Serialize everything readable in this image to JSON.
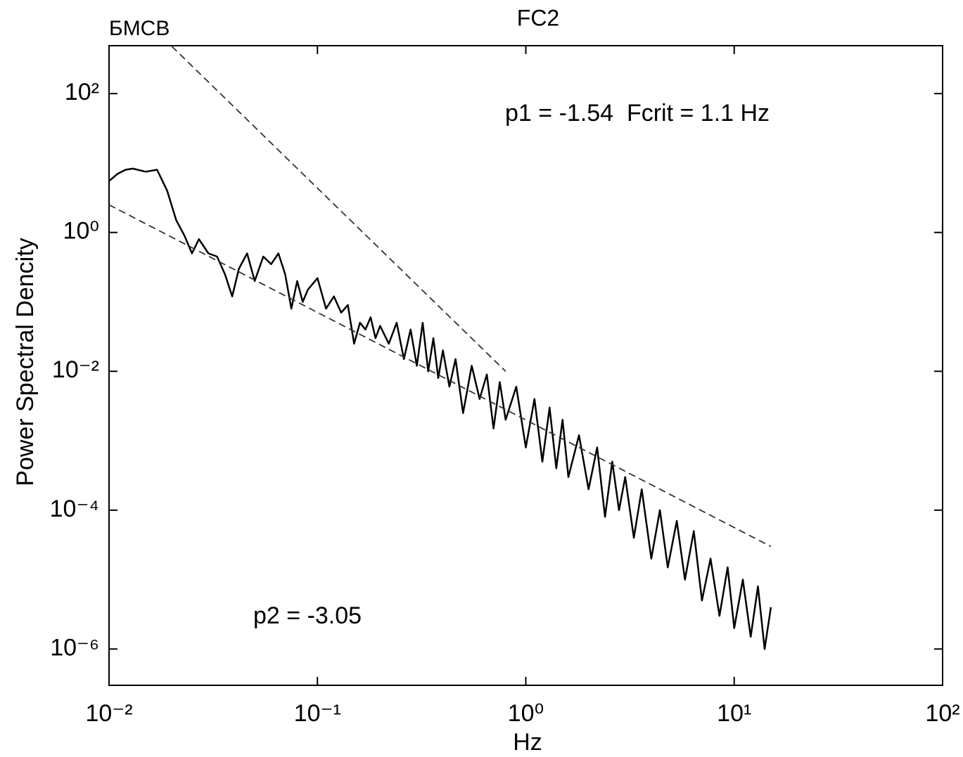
{
  "chart_data": {
    "type": "line",
    "title": "FC2",
    "x_label": "Hz",
    "y_label": "Power Spectral Dencity",
    "annotations": [
      "БМСВ",
      "p1 = -1.54  Fcrit = 1.1 Hz",
      "p2 = -3.05"
    ],
    "xscale": "log",
    "yscale": "log",
    "xlim": [
      0.01,
      100
    ],
    "ylim": [
      3e-07,
      490
    ],
    "xticks": [
      {
        "value": 0.01,
        "label": "10⁻²"
      },
      {
        "value": 0.1,
        "label": "10⁻¹"
      },
      {
        "value": 1,
        "label": "10⁰"
      },
      {
        "value": 10,
        "label": "10¹"
      },
      {
        "value": 100,
        "label": "10²"
      }
    ],
    "yticks": [
      {
        "value": 1e-06,
        "label": "10⁻⁶"
      },
      {
        "value": 0.0001,
        "label": "10⁻⁴"
      },
      {
        "value": 0.01,
        "label": "10⁻²"
      },
      {
        "value": 1,
        "label": "10⁰"
      },
      {
        "value": 100,
        "label": "10²"
      }
    ],
    "series": [
      {
        "color": "#000000",
        "style": "solid",
        "x": [
          0.01,
          0.011,
          0.012,
          0.013,
          0.015,
          0.017,
          0.019,
          0.021,
          0.023,
          0.025,
          0.027,
          0.03,
          0.033,
          0.036,
          0.039,
          0.042,
          0.046,
          0.05,
          0.055,
          0.06,
          0.065,
          0.07,
          0.075,
          0.08,
          0.085,
          0.09,
          0.1,
          0.11,
          0.12,
          0.13,
          0.14,
          0.15,
          0.16,
          0.17,
          0.18,
          0.19,
          0.2,
          0.22,
          0.24,
          0.26,
          0.28,
          0.3,
          0.32,
          0.34,
          0.36,
          0.38,
          0.4,
          0.43,
          0.46,
          0.5,
          0.55,
          0.6,
          0.65,
          0.7,
          0.75,
          0.8,
          0.9,
          1,
          1.1,
          1.2,
          1.3,
          1.4,
          1.5,
          1.6,
          1.8,
          2,
          2.2,
          2.4,
          2.6,
          2.8,
          3,
          3.3,
          3.6,
          4,
          4.4,
          4.8,
          5.3,
          5.8,
          6.4,
          7,
          7.7,
          8.5,
          9.3,
          10,
          11,
          12,
          13,
          14,
          15
        ],
        "values": [
          5.5,
          7,
          8,
          8.3,
          7.5,
          8,
          4,
          1.5,
          0.9,
          0.5,
          0.8,
          0.5,
          0.45,
          0.25,
          0.12,
          0.3,
          0.5,
          0.2,
          0.45,
          0.35,
          0.5,
          0.25,
          0.08,
          0.2,
          0.1,
          0.15,
          0.22,
          0.08,
          0.12,
          0.07,
          0.09,
          0.025,
          0.05,
          0.04,
          0.06,
          0.03,
          0.045,
          0.025,
          0.05,
          0.015,
          0.04,
          0.012,
          0.05,
          0.01,
          0.03,
          0.008,
          0.02,
          0.006,
          0.015,
          0.0025,
          0.012,
          0.004,
          0.009,
          0.0015,
          0.007,
          0.002,
          0.006,
          0.0008,
          0.004,
          0.0005,
          0.003,
          0.0004,
          0.002,
          0.0003,
          0.0012,
          0.0002,
          0.0008,
          8e-05,
          0.0005,
          0.0001,
          0.0003,
          4e-05,
          0.0002,
          2e-05,
          0.0001,
          1.5e-05,
          7e-05,
          1e-05,
          5e-05,
          5e-06,
          2e-05,
          3e-06,
          1.5e-05,
          2e-06,
          1e-05,
          1.5e-06,
          8e-06,
          1e-06,
          4e-06
        ]
      },
      {
        "color": "#333333",
        "style": "dashed",
        "x": [
          0.02,
          0.8
        ],
        "values": [
          480,
          0.01
        ]
      },
      {
        "color": "#333333",
        "style": "dashed",
        "x": [
          0.01,
          15
        ],
        "values": [
          2.5,
          3e-05
        ]
      }
    ]
  }
}
